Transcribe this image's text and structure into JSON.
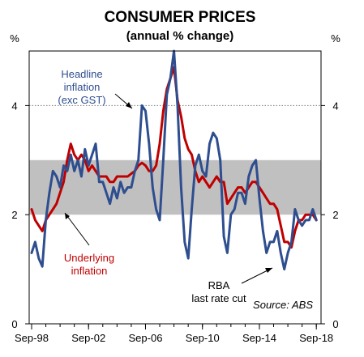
{
  "chart_data": {
    "type": "line",
    "title": "CONSUMER PRICES",
    "subtitle": "(annual % change)",
    "ylabel_left": "%",
    "ylabel_right": "%",
    "ylim": [
      0,
      5
    ],
    "yticks": [
      0,
      2,
      4
    ],
    "xlim": [
      1998.5,
      2019.0
    ],
    "xticks": [
      {
        "x": 1998.67,
        "label": "Sep-98"
      },
      {
        "x": 2002.67,
        "label": "Sep-02"
      },
      {
        "x": 2006.67,
        "label": "Sep-06"
      },
      {
        "x": 2010.67,
        "label": "Sep-10"
      },
      {
        "x": 2014.67,
        "label": "Sep-14"
      },
      {
        "x": 2018.67,
        "label": "Sep-18"
      }
    ],
    "band": {
      "from": 2,
      "to": 3,
      "color": "#c0c0c0"
    },
    "reference_line": {
      "y": 4,
      "style": "dotted"
    },
    "grid": false,
    "series": [
      {
        "name": "Headline inflation (exc GST)",
        "color": "#2e4e8f",
        "points": [
          [
            1998.67,
            1.3
          ],
          [
            1998.92,
            1.5
          ],
          [
            1999.17,
            1.2
          ],
          [
            1999.42,
            1.05
          ],
          [
            1999.67,
            1.9
          ],
          [
            1999.92,
            2.4
          ],
          [
            2000.17,
            2.8
          ],
          [
            2000.42,
            2.7
          ],
          [
            2000.67,
            2.5
          ],
          [
            2000.92,
            2.9
          ],
          [
            2001.17,
            2.8
          ],
          [
            2001.42,
            3.1
          ],
          [
            2001.67,
            2.8
          ],
          [
            2001.92,
            3.0
          ],
          [
            2002.17,
            2.7
          ],
          [
            2002.42,
            3.2
          ],
          [
            2002.67,
            2.9
          ],
          [
            2002.92,
            3.1
          ],
          [
            2003.17,
            3.3
          ],
          [
            2003.42,
            2.6
          ],
          [
            2003.67,
            2.6
          ],
          [
            2003.92,
            2.4
          ],
          [
            2004.17,
            2.2
          ],
          [
            2004.42,
            2.5
          ],
          [
            2004.67,
            2.3
          ],
          [
            2004.92,
            2.6
          ],
          [
            2005.17,
            2.4
          ],
          [
            2005.42,
            2.5
          ],
          [
            2005.67,
            2.5
          ],
          [
            2005.92,
            2.8
          ],
          [
            2006.17,
            3.0
          ],
          [
            2006.42,
            4.0
          ],
          [
            2006.67,
            3.9
          ],
          [
            2006.92,
            3.3
          ],
          [
            2007.17,
            2.5
          ],
          [
            2007.42,
            2.1
          ],
          [
            2007.67,
            1.9
          ],
          [
            2007.92,
            3.0
          ],
          [
            2008.17,
            4.2
          ],
          [
            2008.42,
            4.5
          ],
          [
            2008.67,
            5.0
          ],
          [
            2008.92,
            4.0
          ],
          [
            2009.17,
            2.5
          ],
          [
            2009.42,
            1.5
          ],
          [
            2009.67,
            1.2
          ],
          [
            2009.92,
            2.1
          ],
          [
            2010.17,
            2.9
          ],
          [
            2010.42,
            3.1
          ],
          [
            2010.67,
            2.8
          ],
          [
            2010.92,
            2.7
          ],
          [
            2011.17,
            3.3
          ],
          [
            2011.42,
            3.5
          ],
          [
            2011.67,
            3.4
          ],
          [
            2011.92,
            3.0
          ],
          [
            2012.17,
            1.6
          ],
          [
            2012.42,
            1.3
          ],
          [
            2012.67,
            2.0
          ],
          [
            2012.92,
            2.1
          ],
          [
            2013.17,
            2.4
          ],
          [
            2013.42,
            2.4
          ],
          [
            2013.67,
            2.2
          ],
          [
            2013.92,
            2.7
          ],
          [
            2014.17,
            2.9
          ],
          [
            2014.42,
            3.0
          ],
          [
            2014.67,
            2.3
          ],
          [
            2014.92,
            1.7
          ],
          [
            2015.17,
            1.3
          ],
          [
            2015.42,
            1.5
          ],
          [
            2015.67,
            1.5
          ],
          [
            2015.92,
            1.7
          ],
          [
            2016.17,
            1.3
          ],
          [
            2016.42,
            1.0
          ],
          [
            2016.67,
            1.3
          ],
          [
            2016.92,
            1.5
          ],
          [
            2017.17,
            2.1
          ],
          [
            2017.42,
            1.9
          ],
          [
            2017.67,
            1.8
          ],
          [
            2017.92,
            1.9
          ],
          [
            2018.17,
            1.9
          ],
          [
            2018.42,
            2.1
          ],
          [
            2018.67,
            1.9
          ]
        ]
      },
      {
        "name": "Underlying inflation",
        "color": "#c00000",
        "points": [
          [
            1998.67,
            2.1
          ],
          [
            1998.92,
            1.9
          ],
          [
            1999.17,
            1.8
          ],
          [
            1999.42,
            1.7
          ],
          [
            1999.67,
            1.9
          ],
          [
            1999.92,
            2.0
          ],
          [
            2000.17,
            2.1
          ],
          [
            2000.42,
            2.2
          ],
          [
            2000.67,
            2.4
          ],
          [
            2000.92,
            2.6
          ],
          [
            2001.17,
            3.0
          ],
          [
            2001.42,
            3.3
          ],
          [
            2001.67,
            3.1
          ],
          [
            2001.92,
            3.0
          ],
          [
            2002.17,
            3.1
          ],
          [
            2002.42,
            3.0
          ],
          [
            2002.67,
            2.8
          ],
          [
            2002.92,
            2.9
          ],
          [
            2003.17,
            2.8
          ],
          [
            2003.42,
            2.7
          ],
          [
            2003.67,
            2.7
          ],
          [
            2003.92,
            2.7
          ],
          [
            2004.17,
            2.6
          ],
          [
            2004.42,
            2.6
          ],
          [
            2004.67,
            2.7
          ],
          [
            2004.92,
            2.7
          ],
          [
            2005.17,
            2.7
          ],
          [
            2005.42,
            2.7
          ],
          [
            2005.67,
            2.75
          ],
          [
            2005.92,
            2.8
          ],
          [
            2006.17,
            2.9
          ],
          [
            2006.42,
            2.95
          ],
          [
            2006.67,
            2.9
          ],
          [
            2006.92,
            2.8
          ],
          [
            2007.17,
            2.8
          ],
          [
            2007.42,
            2.9
          ],
          [
            2007.67,
            3.3
          ],
          [
            2007.92,
            3.9
          ],
          [
            2008.17,
            4.3
          ],
          [
            2008.42,
            4.5
          ],
          [
            2008.67,
            4.7
          ],
          [
            2008.92,
            4.1
          ],
          [
            2009.17,
            3.8
          ],
          [
            2009.42,
            3.4
          ],
          [
            2009.67,
            3.2
          ],
          [
            2009.92,
            3.1
          ],
          [
            2010.17,
            2.8
          ],
          [
            2010.42,
            2.6
          ],
          [
            2010.67,
            2.7
          ],
          [
            2010.92,
            2.6
          ],
          [
            2011.17,
            2.5
          ],
          [
            2011.42,
            2.6
          ],
          [
            2011.67,
            2.7
          ],
          [
            2011.92,
            2.6
          ],
          [
            2012.17,
            2.6
          ],
          [
            2012.42,
            2.2
          ],
          [
            2012.67,
            2.3
          ],
          [
            2012.92,
            2.4
          ],
          [
            2013.17,
            2.5
          ],
          [
            2013.42,
            2.5
          ],
          [
            2013.67,
            2.4
          ],
          [
            2013.92,
            2.5
          ],
          [
            2014.17,
            2.6
          ],
          [
            2014.42,
            2.6
          ],
          [
            2014.67,
            2.5
          ],
          [
            2014.92,
            2.4
          ],
          [
            2015.17,
            2.3
          ],
          [
            2015.42,
            2.2
          ],
          [
            2015.67,
            2.2
          ],
          [
            2015.92,
            2.1
          ],
          [
            2016.17,
            1.8
          ],
          [
            2016.42,
            1.5
          ],
          [
            2016.67,
            1.5
          ],
          [
            2016.92,
            1.4
          ],
          [
            2017.17,
            1.7
          ],
          [
            2017.42,
            1.9
          ],
          [
            2017.67,
            1.9
          ],
          [
            2017.92,
            2.0
          ],
          [
            2018.17,
            2.0
          ],
          [
            2018.42,
            2.0
          ],
          [
            2018.67,
            1.9
          ]
        ]
      }
    ],
    "annotations": {
      "headline_label_lines": [
        "Headline",
        "inflation",
        "(exc GST)"
      ],
      "underlying_label_lines": [
        "Underlying",
        "inflation"
      ],
      "rba_label_lines": [
        "RBA",
        "last rate cut"
      ],
      "source": "Source: ABS"
    }
  }
}
